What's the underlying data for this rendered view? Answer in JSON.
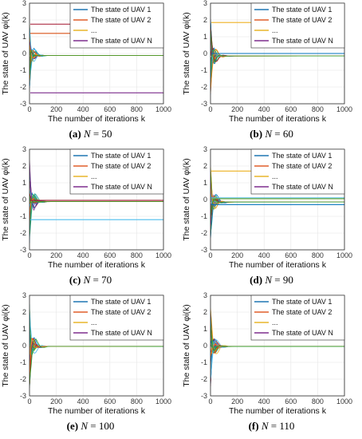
{
  "legend_entries": [
    "The state of UAV 1",
    "The state of UAV 2",
    "...",
    "The state of UAV N"
  ],
  "legend_colors": [
    "#1f77b4",
    "#e15f2a",
    "#e8b52b",
    "#7e2f8e"
  ],
  "palette": [
    "#0072bd",
    "#d95319",
    "#edb120",
    "#7e2f8e",
    "#77ac30",
    "#4dbeee",
    "#a2142f",
    "#1f9e89",
    "#ff7f0e",
    "#2ca02c"
  ],
  "chart_data": [
    {
      "type": "line",
      "caption_label": "(a)",
      "caption_n": "50",
      "xlabel": "The number of iterations k",
      "ylabel": "The state of UAV φi(k)",
      "xlim": [
        0,
        1000
      ],
      "ylim": [
        -3,
        3
      ],
      "xticks": [
        0,
        200,
        400,
        600,
        800,
        1000
      ],
      "yticks": [
        3,
        2,
        1,
        0,
        -1,
        -2,
        -3
      ],
      "grid": true,
      "legend_position": "top-right",
      "converged_value": -0.12,
      "transient_spread": 2.0,
      "outlier_lines": [
        {
          "value": 1.75,
          "color": "#a2142f"
        },
        {
          "value": 1.2,
          "color": "#d95319"
        },
        {
          "value": -2.35,
          "color": "#7e2f8e"
        }
      ]
    },
    {
      "type": "line",
      "caption_label": "(b)",
      "caption_n": "60",
      "xlabel": "The number of iterations k",
      "ylabel": "The state of UAV φi(k)",
      "xlim": [
        0,
        1000
      ],
      "ylim": [
        -3,
        3
      ],
      "xticks": [
        0,
        200,
        400,
        600,
        800,
        1000
      ],
      "yticks": [
        3,
        2,
        1,
        0,
        -1,
        -2,
        -3
      ],
      "grid": true,
      "legend_position": "top-right",
      "converged_value": -0.15,
      "transient_spread": 2.3,
      "outlier_lines": [
        {
          "value": 1.85,
          "color": "#edb120"
        },
        {
          "value": 0.0,
          "color": "#0072bd"
        }
      ]
    },
    {
      "type": "line",
      "caption_label": "(c)",
      "caption_n": "70",
      "xlabel": "The number of iterations k",
      "ylabel": "The state of UAV φi(k)",
      "xlim": [
        0,
        1000
      ],
      "ylim": [
        -3,
        3
      ],
      "xticks": [
        0,
        200,
        400,
        600,
        800,
        1000
      ],
      "yticks": [
        3,
        2,
        1,
        0,
        -1,
        -2,
        -3
      ],
      "grid": true,
      "legend_position": "top-right",
      "converged_value": -0.12,
      "transient_spread": 2.5,
      "outlier_lines": [
        {
          "value": -1.2,
          "color": "#4dbeee"
        },
        {
          "value": -0.05,
          "color": "#a2142f"
        }
      ]
    },
    {
      "type": "line",
      "caption_label": "(d)",
      "caption_n": "90",
      "xlabel": "The number of iterations k",
      "ylabel": "The state of UAV φi(k)",
      "xlim": [
        0,
        1000
      ],
      "ylim": [
        -3,
        3
      ],
      "xticks": [
        0,
        200,
        400,
        600,
        800,
        1000
      ],
      "yticks": [
        3,
        2,
        1,
        0,
        -1,
        -2,
        -3
      ],
      "grid": true,
      "legend_position": "top-right",
      "converged_value": -0.15,
      "transient_spread": 2.2,
      "outlier_lines": [
        {
          "value": 1.7,
          "color": "#edb120"
        },
        {
          "value": 0.1,
          "color": "#4dbeee"
        },
        {
          "value": 0.05,
          "color": "#77ac30"
        },
        {
          "value": -0.3,
          "color": "#0072bd"
        }
      ]
    },
    {
      "type": "line",
      "caption_label": "(e)",
      "caption_n": "100",
      "xlabel": "The number of iterations k",
      "ylabel": "The state of UAV φi(k)",
      "xlim": [
        0,
        1000
      ],
      "ylim": [
        -3,
        3
      ],
      "xticks": [
        0,
        200,
        400,
        600,
        800,
        1000
      ],
      "yticks": [
        3,
        2,
        1,
        0,
        -1,
        -2,
        -3
      ],
      "grid": true,
      "legend_position": "top-right",
      "converged_value": -0.05,
      "transient_spread": 2.6,
      "outlier_lines": []
    },
    {
      "type": "line",
      "caption_label": "(f)",
      "caption_n": "110",
      "xlabel": "The number of iterations k",
      "ylabel": "The state of UAV φi(k)",
      "xlim": [
        0,
        1000
      ],
      "ylim": [
        -3,
        3
      ],
      "xticks": [
        0,
        200,
        400,
        600,
        800,
        1000
      ],
      "yticks": [
        3,
        2,
        1,
        0,
        -1,
        -2,
        -3
      ],
      "grid": true,
      "legend_position": "top-right",
      "converged_value": -0.05,
      "transient_spread": 2.4,
      "outlier_lines": []
    }
  ]
}
